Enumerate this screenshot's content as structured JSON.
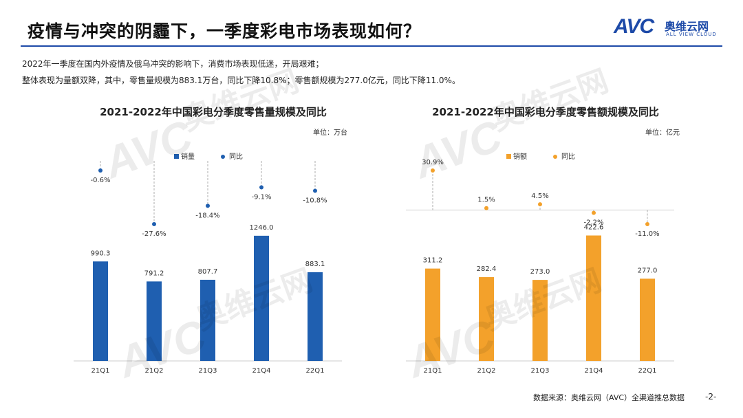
{
  "title": "疫情与冲突的阴霾下，一季度彩电市场表现如何？",
  "logo": {
    "brand": "AVC",
    "cn": "奥维云网",
    "en": "ALL VIEW CLOUD"
  },
  "intro": [
    "2022年一季度在国内外疫情及俄乌冲突的影响下，消费市场表现低迷，开局艰难；",
    "整体表现为量额双降，其中，零售量规模为883.1万台，同比下降10.8%；零售额规模为277.0亿元，同比下降11.0%。"
  ],
  "footer": "数据来源：奥维云网（AVC）全渠道推总数据",
  "page_number": "-2-",
  "colors": {
    "blue": "#1f5fb0",
    "orange": "#f3a12b",
    "title_blue": "#1d4aa8"
  },
  "chart_data": [
    {
      "type": "bar",
      "title": "2021-2022年中国彩电分季度零售量规模及同比",
      "unit": "单位：万台",
      "categories": [
        "21Q1",
        "21Q2",
        "21Q3",
        "21Q4",
        "22Q1"
      ],
      "series": [
        {
          "name": "销量",
          "values": [
            990.3,
            791.2,
            807.7,
            1246.0,
            883.1
          ],
          "labels": [
            "990.3",
            "791.2",
            "807.7",
            "1246.0",
            "883.1"
          ]
        },
        {
          "name": "同比",
          "values": [
            -0.6,
            -27.6,
            -18.4,
            -9.1,
            -10.8
          ],
          "labels": [
            "-0.6%",
            "-27.6%",
            "-18.4%",
            "-9.1%",
            "-10.8%"
          ]
        }
      ],
      "ylim": [
        0,
        1300
      ]
    },
    {
      "type": "bar",
      "title": "2021-2022年中国彩电分季度零售额规模及同比",
      "unit": "单位：亿元",
      "categories": [
        "21Q1",
        "21Q2",
        "21Q3",
        "21Q4",
        "22Q1"
      ],
      "series": [
        {
          "name": "销额",
          "values": [
            311.2,
            282.4,
            273.0,
            422.6,
            277.0
          ],
          "labels": [
            "311.2",
            "282.4",
            "273.0",
            "422.6",
            "277.0"
          ]
        },
        {
          "name": "同比",
          "values": [
            30.9,
            1.5,
            4.5,
            -2.2,
            -11.0
          ],
          "labels": [
            "30.9%",
            "1.5%",
            "4.5%",
            "-2.2%",
            "-11.0%"
          ]
        }
      ],
      "ylim": [
        0,
        440
      ]
    }
  ]
}
